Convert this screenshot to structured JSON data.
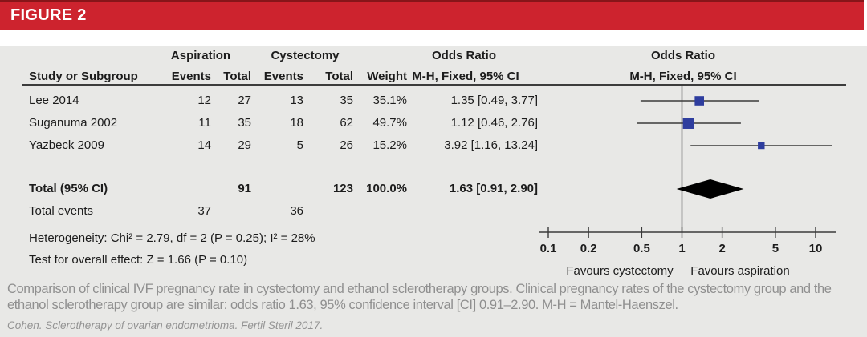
{
  "figure_label": "FIGURE 2",
  "colors": {
    "header_red": "#cd232e",
    "header_red_dark": "#871519",
    "panel_gray": "#e8e8e6",
    "marker_blue": "#2e3d9e",
    "line_gray": "#3a3a3a",
    "caption_gray": "#8f8f8f"
  },
  "table": {
    "group_headers": {
      "aspiration": "Aspiration",
      "cystectomy": "Cystectomy",
      "odds_ratio_text": "Odds Ratio",
      "odds_ratio_plot": "Odds Ratio"
    },
    "column_headers": {
      "study": "Study or Subgroup",
      "events1": "Events",
      "total1": "Total",
      "events2": "Events",
      "total2": "Total",
      "weight": "Weight",
      "mh_ci_text": "M-H, Fixed, 95% CI",
      "mh_ci_plot": "M-H, Fixed, 95% CI"
    },
    "rows": [
      {
        "study": "Lee 2014",
        "events1": "12",
        "total1": "27",
        "events2": "13",
        "total2": "35",
        "weight": "35.1%",
        "or_ci": "1.35 [0.49, 3.77]"
      },
      {
        "study": "Suganuma 2002",
        "events1": "11",
        "total1": "35",
        "events2": "18",
        "total2": "62",
        "weight": "49.7%",
        "or_ci": "1.12 [0.46, 2.76]"
      },
      {
        "study": "Yazbeck 2009",
        "events1": "14",
        "total1": "29",
        "events2": "5",
        "total2": "26",
        "weight": "15.2%",
        "or_ci": "3.92 [1.16, 13.24]"
      }
    ],
    "total_row": {
      "label": "Total (95% CI)",
      "total1": "91",
      "total2": "123",
      "weight": "100.0%",
      "or_ci": "1.63 [0.91, 2.90]"
    },
    "total_events_row": {
      "label": "Total events",
      "events1": "37",
      "events2": "36"
    },
    "heterogeneity": "Heterogeneity: Chi² = 2.79, df = 2 (P = 0.25); I² = 28%",
    "overall_effect": "Test for overall effect: Z = 1.66 (P = 0.10)"
  },
  "chart_data": {
    "type": "scatter",
    "subtype": "forest-plot",
    "x_scale": "log10",
    "xlim": [
      0.1,
      10
    ],
    "axis_ticks": [
      "0.1",
      "0.2",
      "0.5",
      "1",
      "2",
      "5",
      "10"
    ],
    "axis_label_left": "Favours cystectomy",
    "axis_label_right": "Favours aspiration",
    "marker_color": "#2e3d9e",
    "diamond_color": "#000000",
    "studies": [
      {
        "name": "Lee 2014",
        "or": 1.35,
        "ci_low": 0.49,
        "ci_high": 3.77,
        "weight_pct": 35.1
      },
      {
        "name": "Suganuma 2002",
        "or": 1.12,
        "ci_low": 0.46,
        "ci_high": 2.76,
        "weight_pct": 49.7
      },
      {
        "name": "Yazbeck 2009",
        "or": 3.92,
        "ci_low": 1.16,
        "ci_high": 13.24,
        "weight_pct": 15.2
      }
    ],
    "total": {
      "or": 1.63,
      "ci_low": 0.91,
      "ci_high": 2.9
    }
  },
  "caption": "Comparison of clinical IVF pregnancy rate in cystectomy and ethanol sclerotherapy groups. Clinical pregnancy rates of the cystectomy group and the ethanol sclerotherapy group are similar: odds ratio 1.63, 95% confidence interval [CI] 0.91–2.90. M-H = Mantel-Haenszel.",
  "citation": "Cohen. Sclerotherapy of ovarian endometrioma. Fertil Steril 2017."
}
